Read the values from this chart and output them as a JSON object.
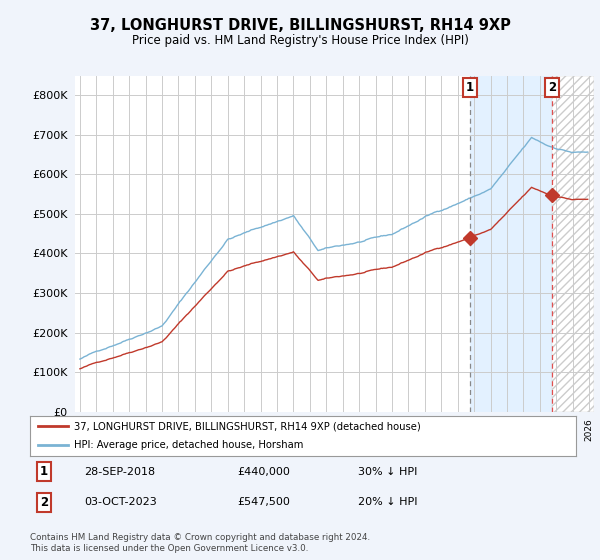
{
  "title": "37, LONGHURST DRIVE, BILLINGSHURST, RH14 9XP",
  "subtitle": "Price paid vs. HM Land Registry's House Price Index (HPI)",
  "hpi_color": "#7ab3d4",
  "price_color": "#c0392b",
  "annotation_box_color": "#c0392b",
  "legend_label_price": "37, LONGHURST DRIVE, BILLINGSHURST, RH14 9XP (detached house)",
  "legend_label_hpi": "HPI: Average price, detached house, Horsham",
  "transaction1_label": "1",
  "transaction1_date": "28-SEP-2018",
  "transaction1_price": "£440,000",
  "transaction1_note": "30% ↓ HPI",
  "transaction2_label": "2",
  "transaction2_date": "03-OCT-2023",
  "transaction2_price": "£547,500",
  "transaction2_note": "20% ↓ HPI",
  "footer": "Contains HM Land Registry data © Crown copyright and database right 2024.\nThis data is licensed under the Open Government Licence v3.0.",
  "ylim_min": 0,
  "ylim_max": 850000,
  "yticks": [
    0,
    100000,
    200000,
    300000,
    400000,
    500000,
    600000,
    700000,
    800000
  ],
  "bg_color": "#f0f4fb",
  "plot_bg": "#ffffff",
  "grid_color": "#cccccc",
  "vline1_color": "#888888",
  "vline1_style": "--",
  "vline2_color": "#e05050",
  "vline2_style": "--",
  "shade_color": "#ddeeff",
  "hatch_color": "#cccccc",
  "marker1_x": 2018.75,
  "marker1_y": 440000,
  "marker2_x": 2023.75,
  "marker2_y": 547500,
  "xlim_min": 1994.7,
  "xlim_max": 2026.3
}
